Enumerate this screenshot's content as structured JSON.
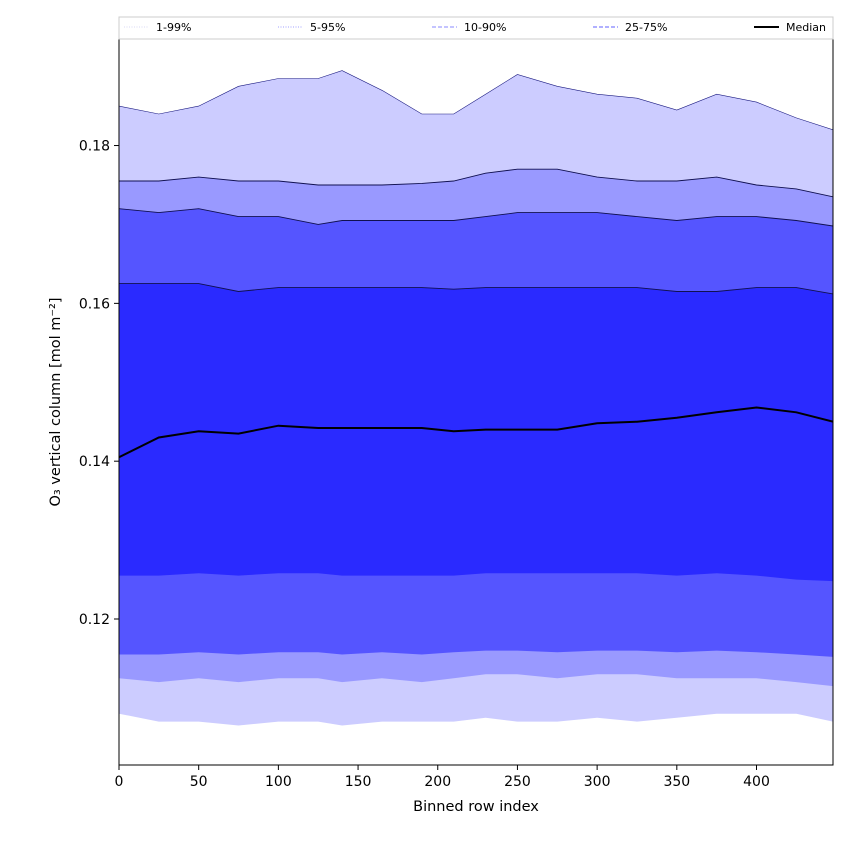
{
  "chart_data": {
    "type": "area",
    "title": "",
    "xlabel": "Binned row index",
    "ylabel": "O₃ vertical column [mol m⁻²]",
    "xlim": [
      0,
      448
    ],
    "ylim": [
      0.1015,
      0.1935
    ],
    "x_ticks": [
      "0",
      "50",
      "100",
      "150",
      "200",
      "250",
      "300",
      "350",
      "400"
    ],
    "y_ticks": [
      "0.12",
      "0.14",
      "0.16",
      "0.18"
    ],
    "x_tick_values": [
      0,
      50,
      100,
      150,
      200,
      250,
      300,
      350,
      400
    ],
    "y_tick_values": [
      0.12,
      0.14,
      0.16,
      0.18
    ],
    "grid": false,
    "legend_position": "top",
    "legend": [
      {
        "label": "1-99%",
        "color": "#d8d8f4",
        "style": "dotted"
      },
      {
        "label": "5-95%",
        "color": "#a0a0ff",
        "style": "dotted"
      },
      {
        "label": "10-90%",
        "color": "#8a8aff",
        "style": "dashed"
      },
      {
        "label": "25-75%",
        "color": "#6060ff",
        "style": "dashed"
      },
      {
        "label": "Median",
        "color": "#000000",
        "style": "solid"
      }
    ],
    "x": [
      0,
      25,
      50,
      75,
      100,
      125,
      140,
      165,
      190,
      210,
      230,
      250,
      275,
      300,
      325,
      350,
      375,
      400,
      425,
      448
    ],
    "bands": [
      {
        "name": "1-99%",
        "color": "#ccccff",
        "upper": [
          0.185,
          0.184,
          0.185,
          0.1875,
          0.1885,
          0.1885,
          0.1895,
          0.187,
          0.184,
          0.184,
          0.1865,
          0.189,
          0.1875,
          0.1865,
          0.186,
          0.1845,
          0.1865,
          0.1855,
          0.1835,
          0.182
        ],
        "lower": [
          0.108,
          0.107,
          0.107,
          0.1065,
          0.107,
          0.107,
          0.1065,
          0.107,
          0.107,
          0.107,
          0.1075,
          0.107,
          0.107,
          0.1075,
          0.107,
          0.1075,
          0.108,
          0.108,
          0.108,
          0.107
        ]
      },
      {
        "name": "5-95%",
        "color": "#9999ff",
        "upper": [
          0.1755,
          0.1755,
          0.176,
          0.1755,
          0.1755,
          0.175,
          0.175,
          0.175,
          0.1752,
          0.1755,
          0.1765,
          0.177,
          0.177,
          0.176,
          0.1755,
          0.1755,
          0.176,
          0.175,
          0.1745,
          0.1735
        ],
        "lower": [
          0.1125,
          0.112,
          0.1125,
          0.112,
          0.1125,
          0.1125,
          0.112,
          0.1125,
          0.112,
          0.1125,
          0.113,
          0.113,
          0.1125,
          0.113,
          0.113,
          0.1125,
          0.1125,
          0.1125,
          0.112,
          0.1115
        ]
      },
      {
        "name": "10-90%",
        "color": "#5555ff",
        "upper": [
          0.172,
          0.1715,
          0.172,
          0.171,
          0.171,
          0.17,
          0.1705,
          0.1705,
          0.1705,
          0.1705,
          0.171,
          0.1715,
          0.1715,
          0.1715,
          0.171,
          0.1705,
          0.171,
          0.171,
          0.1705,
          0.1698
        ],
        "lower": [
          0.1155,
          0.1155,
          0.1158,
          0.1155,
          0.1158,
          0.1158,
          0.1155,
          0.1158,
          0.1155,
          0.1158,
          0.116,
          0.116,
          0.1158,
          0.116,
          0.116,
          0.1158,
          0.116,
          0.1158,
          0.1155,
          0.1152
        ]
      },
      {
        "name": "25-75%",
        "color": "#2a2aff",
        "upper": [
          0.1625,
          0.1625,
          0.1625,
          0.1615,
          0.162,
          0.162,
          0.162,
          0.162,
          0.162,
          0.1618,
          0.162,
          0.162,
          0.162,
          0.162,
          0.162,
          0.1615,
          0.1615,
          0.162,
          0.162,
          0.1612
        ],
        "lower": [
          0.1255,
          0.1255,
          0.1258,
          0.1255,
          0.1258,
          0.1258,
          0.1255,
          0.1255,
          0.1255,
          0.1255,
          0.1258,
          0.1258,
          0.1258,
          0.1258,
          0.1258,
          0.1255,
          0.1258,
          0.1255,
          0.125,
          0.1248
        ]
      }
    ],
    "median": {
      "name": "Median",
      "color": "#000000",
      "values": [
        0.1405,
        0.143,
        0.1438,
        0.1435,
        0.1445,
        0.1442,
        0.1442,
        0.1442,
        0.1442,
        0.1438,
        0.144,
        0.144,
        0.144,
        0.1448,
        0.145,
        0.1455,
        0.1462,
        0.1468,
        0.1462,
        0.145
      ]
    }
  }
}
